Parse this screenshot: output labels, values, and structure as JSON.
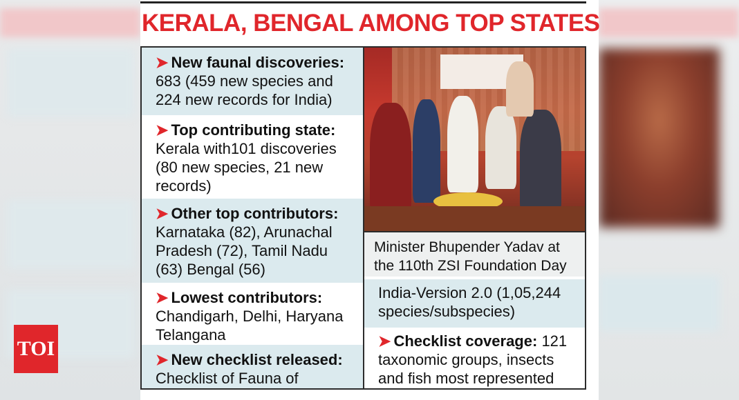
{
  "headline": "KERALA, BENGAL AMONG TOP STATES",
  "left_items": [
    {
      "label": "New faunal discoveries:",
      "text": "683 (459 new species and 224 new records for India)"
    },
    {
      "label": "Top contributing state:",
      "text": "Kerala with101 discoveries (80 new species, 21 new records)"
    },
    {
      "label": "Other top contributors:",
      "text": "Karnataka (82), Arunachal Pradesh (72), Tamil Nadu (63) Bengal (56)"
    },
    {
      "label": "Lowest contributors:",
      "text": "Chandigarh, Delhi, Haryana Telangana"
    },
    {
      "label": "New checklist released:",
      "text": "Checklist of Fauna of"
    }
  ],
  "photo": {
    "caption": "Minister Bhupender Yadav at the 110th ZSI Foundation Day"
  },
  "right_items": [
    {
      "label": "",
      "text": "India-Version 2.0 (1,05,244 species/subspecies)"
    },
    {
      "label": "Checklist coverage:",
      "text": "121 taxonomic groups, insects and fish most represented"
    }
  ],
  "arrow_glyph": "➤",
  "logo_text": "TOI",
  "colors": {
    "headline": "#e0262b",
    "tint": "#dbeaee",
    "arrow": "#e0262b",
    "logo_bg": "#e0262b"
  }
}
